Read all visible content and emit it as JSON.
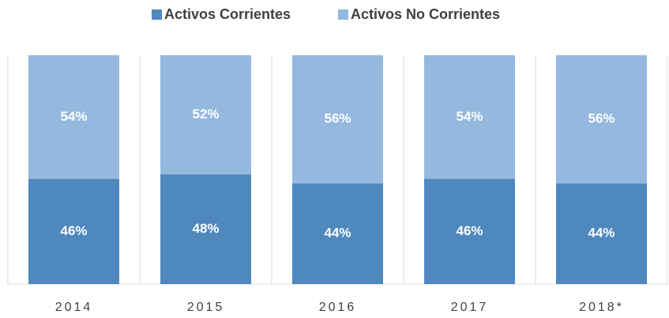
{
  "chart_data": {
    "type": "stacked_bar",
    "categories": [
      "2014",
      "2015",
      "2016",
      "2017",
      "2018*"
    ],
    "series": [
      {
        "name": "Activos Corrientes",
        "color": "#4f88bd",
        "values": [
          46,
          48,
          44,
          46,
          44
        ],
        "value_labels": [
          "46%",
          "48%",
          "44%",
          "46%",
          "44%"
        ]
      },
      {
        "name": "Activos No Corrientes",
        "color": "#95b8df",
        "values": [
          54,
          52,
          56,
          54,
          56
        ],
        "value_labels": [
          "54%",
          "52%",
          "56%",
          "54%",
          "56%"
        ]
      }
    ],
    "ylim": [
      0,
      100
    ],
    "legend": "top"
  }
}
